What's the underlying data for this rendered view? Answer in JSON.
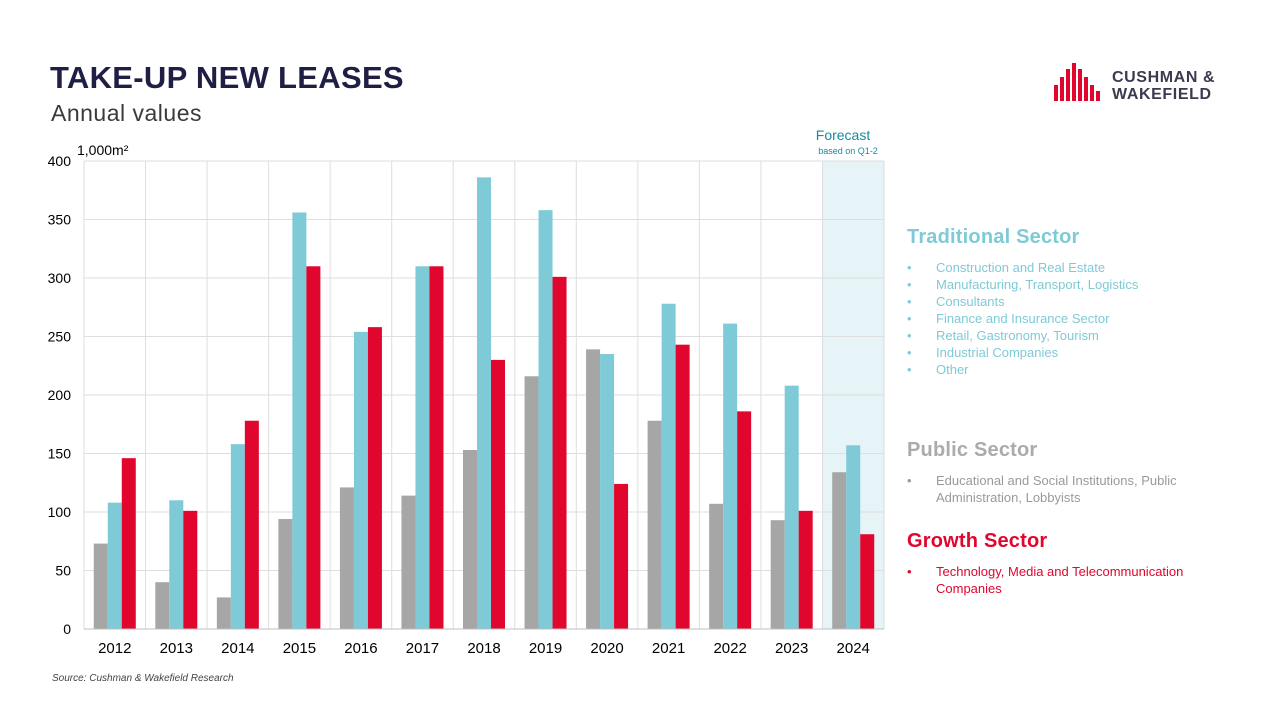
{
  "header": {
    "title": "TAKE-UP NEW LEASES",
    "subtitle": "Annual values"
  },
  "logo": {
    "line1": "CUSHMAN &",
    "line2": "WAKEFIELD"
  },
  "colors": {
    "public": "#a6a6a6",
    "traditional": "#7ecad6",
    "growth": "#e0062d",
    "forecast_bg": "#e6f3f7",
    "forecast_text": "#1b8aa0"
  },
  "chart_data": {
    "type": "bar",
    "title": "TAKE-UP NEW LEASES",
    "ylabel": "1,000m²",
    "xlabel": "",
    "ylim": [
      0,
      400
    ],
    "yticks": [
      0,
      50,
      100,
      150,
      200,
      250,
      300,
      350,
      400
    ],
    "categories": [
      "2012",
      "2013",
      "2014",
      "2015",
      "2016",
      "2017",
      "2018",
      "2019",
      "2020",
      "2021",
      "2022",
      "2023",
      "2024"
    ],
    "series": [
      {
        "name": "Public Sector",
        "values": [
          73,
          40,
          27,
          94,
          121,
          114,
          153,
          216,
          239,
          178,
          107,
          93,
          134
        ]
      },
      {
        "name": "Traditional Sector",
        "values": [
          108,
          110,
          158,
          356,
          254,
          310,
          386,
          358,
          235,
          278,
          261,
          208,
          157
        ]
      },
      {
        "name": "Growth Sector",
        "values": [
          146,
          101,
          178,
          310,
          258,
          310,
          230,
          301,
          124,
          243,
          186,
          101,
          81
        ]
      }
    ],
    "forecast": {
      "category": "2024",
      "label": "Forecast",
      "note": "based on Q1-2"
    },
    "grid": true
  },
  "legend": {
    "traditional": {
      "title": "Traditional Sector",
      "items": [
        "Construction and Real Estate",
        "Manufacturing, Transport, Logistics",
        "Consultants",
        "Finance and Insurance Sector",
        "Retail, Gastronomy, Tourism",
        "Industrial Companies",
        "Other"
      ]
    },
    "public": {
      "title": "Public Sector",
      "items": [
        "Educational and Social Institutions, Public Administration, Lobbyists"
      ]
    },
    "growth": {
      "title": "Growth Sector",
      "items": [
        "Technology, Media and Telecommunication Companies"
      ]
    }
  },
  "footer": {
    "source": "Source: Cushman & Wakefield Research"
  }
}
